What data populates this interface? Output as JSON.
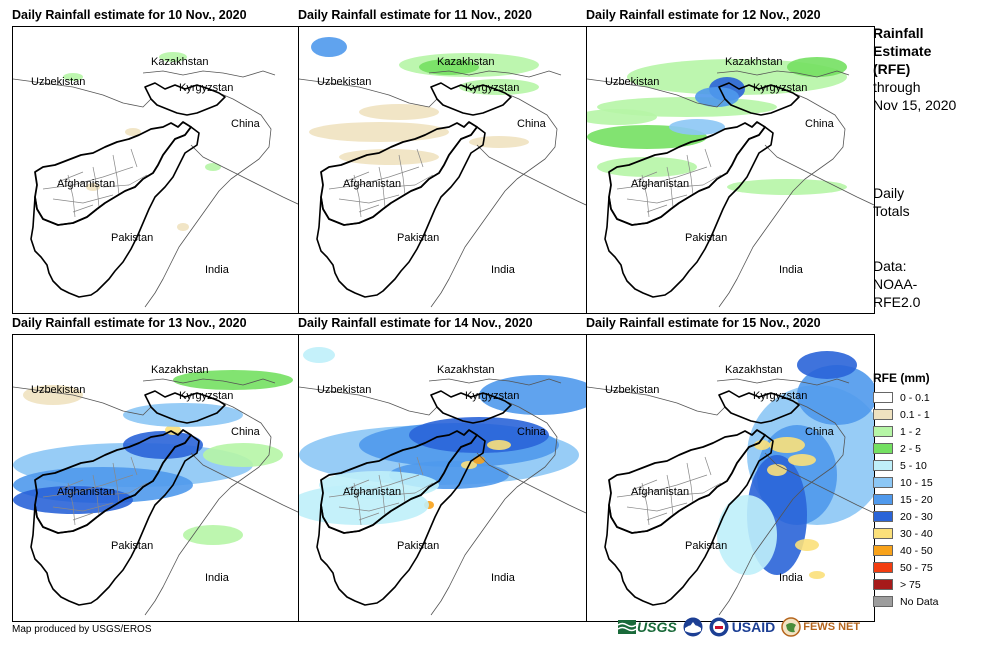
{
  "panels": [
    {
      "title": "Daily Rainfall estimate for 10 Nov., 2020",
      "intensity": 0
    },
    {
      "title": "Daily Rainfall estimate for 11 Nov., 2020",
      "intensity": 1
    },
    {
      "title": "Daily Rainfall estimate for 12 Nov., 2020",
      "intensity": 2
    },
    {
      "title": "Daily Rainfall estimate for 13 Nov., 2020",
      "intensity": 3
    },
    {
      "title": "Daily Rainfall estimate for 14 Nov., 2020",
      "intensity": 4
    },
    {
      "title": "Daily Rainfall estimate for 15 Nov., 2020",
      "intensity": 5
    }
  ],
  "country_labels": {
    "kazakhstan": "Kazakhstan",
    "uzbekistan": "Uzbekistan",
    "kyrgyzstan": "Kyrgyzstan",
    "china": "China",
    "afghanistan": "Afghanistan",
    "pakistan": "Pakistan",
    "india": "India"
  },
  "side": {
    "title1": "Rainfall",
    "title2": "Estimate",
    "title3": "(RFE)",
    "through": "through",
    "date": "Nov 15, 2020",
    "daily": "Daily",
    "totals": "Totals",
    "data_label": "Data:",
    "data1": "NOAA-",
    "data2": "RFE2.0"
  },
  "legend": {
    "title": "RFE (mm)",
    "items": [
      {
        "label": "0 - 0.1",
        "color": "#ffffff"
      },
      {
        "label": "0.1 - 1",
        "color": "#efe2c0"
      },
      {
        "label": "1 - 2",
        "color": "#b6f5a6"
      },
      {
        "label": "2 - 5",
        "color": "#74e062"
      },
      {
        "label": "5 - 10",
        "color": "#bfeff9"
      },
      {
        "label": "10 - 15",
        "color": "#8cc7f5"
      },
      {
        "label": "15 - 20",
        "color": "#4f99ec"
      },
      {
        "label": "20 - 30",
        "color": "#2a64d8"
      },
      {
        "label": "30 - 40",
        "color": "#fbe07a"
      },
      {
        "label": "40 - 50",
        "color": "#f8a21a"
      },
      {
        "label": "50 - 75",
        "color": "#f23d10"
      },
      {
        "label": "> 75",
        "color": "#a61a1a"
      },
      {
        "label": "No Data",
        "color": "#9d9d9d"
      }
    ]
  },
  "credit": "Map produced by USGS/EROS",
  "logos": {
    "usgs": "USGS",
    "usaid": "USAID",
    "fewsnet": "FEWS NET"
  }
}
